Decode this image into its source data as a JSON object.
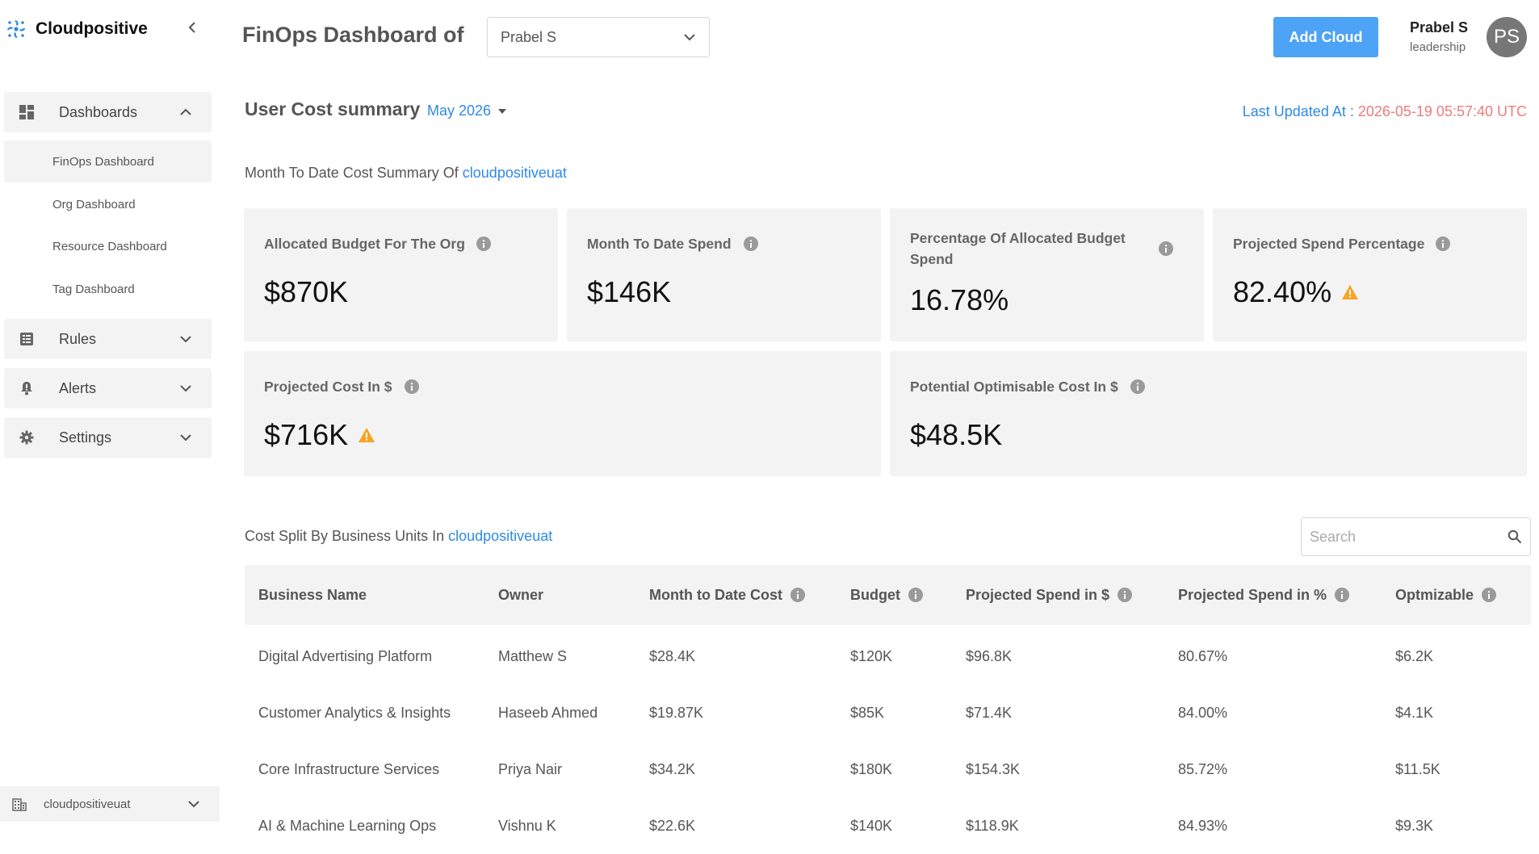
{
  "brand": {
    "name": "Cloudpositive"
  },
  "sidebar": {
    "dashboards_label": "Dashboards",
    "sub_items": [
      "FinOps Dashboard",
      "Org Dashboard",
      "Resource Dashboard",
      "Tag Dashboard"
    ],
    "rules_label": "Rules",
    "alerts_label": "Alerts",
    "settings_label": "Settings",
    "org": "cloudpositiveuat"
  },
  "header": {
    "title": "FinOps Dashboard of",
    "selected_user": "Prabel S",
    "add_cloud_label": "Add Cloud",
    "user_name": "Prabel S",
    "user_role": "leadership",
    "avatar_initials": "PS"
  },
  "summary": {
    "title": "User Cost summary",
    "month": "May 2026",
    "last_updated_label": "Last Updated At :",
    "last_updated_value": "2026-05-19 05:57:40 UTC",
    "mtd_heading_prefix": "Month To Date Cost Summary Of",
    "org_link": "cloudpositiveuat"
  },
  "cards": {
    "allocated_budget": {
      "label": "Allocated Budget For The Org",
      "value": "$870K"
    },
    "mtd_spend": {
      "label": "Month To Date Spend",
      "value": "$146K"
    },
    "pct_budget": {
      "label_line1": "Percentage Of Allocated Budget",
      "label_line2": "Spend",
      "value": "16.78%"
    },
    "projected_pct": {
      "label": "Projected Spend Percentage",
      "value": "82.40%",
      "warning": true
    },
    "projected_cost": {
      "label": "Projected Cost In $",
      "value": "$716K",
      "warning": true
    },
    "optimisable": {
      "label": "Potential Optimisable Cost In $",
      "value": "$48.5K"
    }
  },
  "table": {
    "heading_prefix": "Cost Split By Business Units In",
    "org_link": "cloudpositiveuat",
    "search_placeholder": "Search",
    "columns": [
      "Business Name",
      "Owner",
      "Month to Date Cost",
      "Budget",
      "Projected Spend in $",
      "Projected Spend in %",
      "Optmizable"
    ],
    "rows": [
      [
        "Digital Advertising Platform",
        "Matthew S",
        "$28.4K",
        "$120K",
        "$96.8K",
        "80.67%",
        "$6.2K"
      ],
      [
        "Customer Analytics & Insights",
        "Haseeb Ahmed",
        "$19.87K",
        "$85K",
        "$71.4K",
        "84.00%",
        "$4.1K"
      ],
      [
        "Core Infrastructure Services",
        "Priya Nair",
        "$34.2K",
        "$180K",
        "$154.3K",
        "85.72%",
        "$11.5K"
      ],
      [
        "AI & Machine Learning Ops",
        "Vishnu K",
        "$22.6K",
        "$140K",
        "$118.9K",
        "84.93%",
        "$9.3K"
      ]
    ]
  },
  "colors": {
    "accent": "#2e8ae6",
    "button": "#4da3f5",
    "warning": "#f5a623",
    "timestamp": "#ef7b7b",
    "card_bg": "#f3f3f3"
  }
}
